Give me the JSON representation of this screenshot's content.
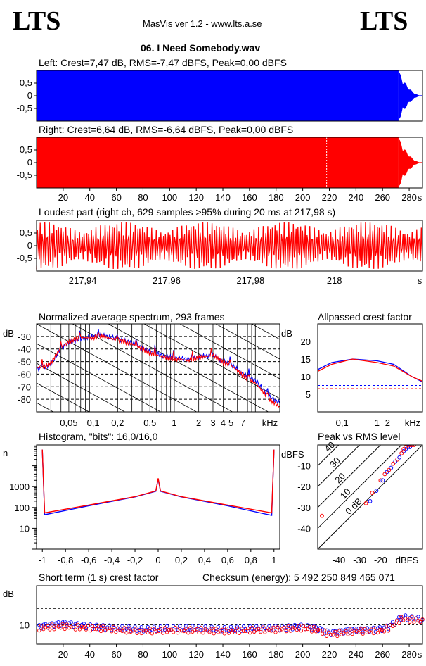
{
  "header": {
    "logo_left": "LTS",
    "logo_right": "LTS",
    "app": "MasVis ver 1.2 - www.lts.a.se",
    "file": "06. I Need Somebody.wav"
  },
  "colors": {
    "left": "#0000ff",
    "right": "#ff0000",
    "grid": "#000000"
  },
  "chart_data": [
    {
      "id": "left-waveform",
      "type": "area",
      "title": "Left: Crest=7,47 dB, RMS=-7,47 dBFS, Peak=0,00 dBFS",
      "yticks": [
        "0,5",
        "0",
        "-0,5"
      ],
      "ylim": [
        -1,
        1
      ],
      "color": "#0000ff",
      "xlim": [
        0,
        290
      ],
      "fadeout_start_s": 272
    },
    {
      "id": "right-waveform",
      "type": "area",
      "title": "Right: Crest=6,64 dB, RMS=-6,64 dBFS, Peak=0,00 dBFS",
      "yticks": [
        "0,5",
        "0",
        "-0,5"
      ],
      "ylim": [
        -1,
        1
      ],
      "color": "#ff0000",
      "xlim": [
        0,
        290
      ],
      "fadeout_start_s": 272,
      "marker_s": 217.98,
      "xticks": [
        "20",
        "40",
        "60",
        "80",
        "100",
        "120",
        "140",
        "160",
        "180",
        "200",
        "220",
        "240",
        "260",
        "280",
        "s"
      ]
    },
    {
      "id": "loudest-part",
      "type": "line",
      "title": "Loudest part (right ch, 629 samples >95% during 20 ms at 217,98 s)",
      "yticks": [
        "0,5",
        "0",
        "-0,5"
      ],
      "ylim": [
        -1,
        1
      ],
      "xlim": [
        217.929,
        218.021
      ],
      "xticks": [
        "217,94",
        "217,96",
        "217,98",
        "218",
        "s"
      ]
    },
    {
      "id": "spectrum",
      "type": "line",
      "title": "Normalized average spectrum, 293 frames",
      "ylabel": "dB",
      "yticks": [
        "-30",
        "-40",
        "-50",
        "-60",
        "-70",
        "-80"
      ],
      "ylim": [
        -90,
        -20
      ],
      "xticks": [
        "0,05",
        "0,1",
        "0,2",
        "0,5",
        "1",
        "2",
        "3",
        "4",
        "5",
        "7",
        "kHz"
      ],
      "xlim_khz": [
        0.02,
        20
      ],
      "series": [
        {
          "color": "#0000ff",
          "x": [
            0.02,
            0.025,
            0.03,
            0.04,
            0.05,
            0.07,
            0.1,
            0.13,
            0.2,
            0.3,
            0.5,
            0.7,
            1,
            1.5,
            2,
            3,
            4,
            5,
            7,
            10,
            15,
            20
          ],
          "y": [
            -56,
            -55,
            -52,
            -40,
            -35,
            -32,
            -30,
            -29,
            -32,
            -35,
            -42,
            -45,
            -47,
            -48,
            -46,
            -45,
            -50,
            -52,
            -60,
            -65,
            -78,
            -83
          ]
        },
        {
          "color": "#ff0000",
          "x": [
            0.02,
            0.025,
            0.03,
            0.04,
            0.05,
            0.07,
            0.1,
            0.13,
            0.2,
            0.3,
            0.5,
            0.7,
            1,
            1.5,
            2,
            3,
            4,
            5,
            7,
            10,
            15,
            20
          ],
          "y": [
            -55,
            -54,
            -51,
            -39,
            -34,
            -31,
            -31,
            -30,
            -33,
            -36,
            -43,
            -46,
            -48,
            -49,
            -47,
            -45,
            -51,
            -53,
            -61,
            -67,
            -80,
            -86
          ]
        }
      ]
    },
    {
      "id": "allpassed-crest",
      "type": "line",
      "title": "Allpassed crest factor",
      "ylabel": "dB",
      "yticks": [
        "20",
        "15",
        "10",
        "5"
      ],
      "ylim": [
        0,
        25
      ],
      "xticks": [
        "0,1",
        "1",
        "2",
        "kHz"
      ],
      "xlim_khz": [
        0.02,
        20
      ],
      "series": [
        {
          "color": "#0000ff",
          "x": [
            0.02,
            0.05,
            0.2,
            1,
            3,
            10,
            20
          ],
          "y": [
            12,
            14,
            15,
            14.5,
            13.5,
            10,
            8.5
          ]
        },
        {
          "color": "#ff0000",
          "x": [
            0.02,
            0.05,
            0.2,
            1,
            3,
            10,
            20
          ],
          "y": [
            11.5,
            13.5,
            15,
            14,
            13,
            10,
            8.7
          ]
        }
      ],
      "reference_lines": [
        {
          "color": "#0000ff",
          "y": 7.5
        },
        {
          "color": "#ff0000",
          "y": 6.6
        }
      ]
    },
    {
      "id": "histogram",
      "type": "line",
      "title": "Histogram, \"bits\": 16,0/16,0",
      "ylabel": "n",
      "yticks": [
        "1000",
        "100",
        "10"
      ],
      "ylim_log": [
        1,
        100000
      ],
      "xlim": [
        -1.05,
        1.05
      ],
      "xticks": [
        "-1",
        "-0,8",
        "-0,6",
        "-0,4",
        "-0,2",
        "0",
        "0,2",
        "0,4",
        "0,6",
        "0,8",
        "1"
      ],
      "series": [
        {
          "color": "#0000ff",
          "x": [
            -1,
            -0.98,
            -0.6,
            -0.2,
            -0.02,
            0,
            0.02,
            0.2,
            0.6,
            0.98,
            1
          ],
          "y": [
            60000,
            45,
            120,
            320,
            600,
            2300,
            600,
            320,
            120,
            42,
            60000
          ]
        },
        {
          "color": "#ff0000",
          "x": [
            -1,
            -0.98,
            -0.6,
            -0.2,
            -0.02,
            0,
            0.02,
            0.2,
            0.6,
            0.98,
            1
          ],
          "y": [
            60000,
            55,
            130,
            330,
            620,
            2500,
            620,
            330,
            130,
            55,
            60000
          ]
        }
      ]
    },
    {
      "id": "peak-vs-rms",
      "type": "scatter",
      "title": "Peak vs RMS level",
      "ylabel": "dBFS",
      "xlabel": "dBFS",
      "yticks": [
        "-10",
        "-20",
        "-30",
        "-40"
      ],
      "xticks": [
        "-40",
        "-30",
        "-20"
      ],
      "xlim": [
        -50,
        0
      ],
      "ylim": [
        -50,
        0
      ],
      "diagonal_labels": [
        "40",
        "30",
        "20",
        "10",
        "0 dB"
      ],
      "series": [
        {
          "color": "#0000ff",
          "x": [
            -25,
            -22,
            -19,
            -17,
            -15,
            -13,
            -11,
            -9,
            -8,
            -7,
            -6,
            -5
          ],
          "y": [
            -27,
            -22,
            -17,
            -13,
            -11,
            -8,
            -6,
            -3,
            -2,
            -1,
            -1,
            0
          ]
        },
        {
          "color": "#ff0000",
          "x": [
            -48,
            -27,
            -24,
            -20,
            -18,
            -16,
            -14,
            -12,
            -10,
            -9,
            -8,
            -7,
            -6,
            -5,
            -4
          ],
          "y": [
            -34,
            -28,
            -23,
            -17,
            -14,
            -12,
            -9,
            -7,
            -4,
            -2,
            -1,
            0,
            0,
            0,
            0
          ]
        }
      ]
    },
    {
      "id": "short-term-crest",
      "type": "scatter",
      "title": "Short term (1 s) crest factor",
      "checksum_label": "Checksum (energy):  5 492 250 849 465 071",
      "ylabel": "dB",
      "yticks": [
        "10"
      ],
      "ylim": [
        4,
        22
      ],
      "xlim": [
        0,
        290
      ],
      "dashed_y": [
        10,
        15
      ],
      "xticks": [
        "20",
        "40",
        "60",
        "80",
        "100",
        "120",
        "140",
        "160",
        "180",
        "200",
        "220",
        "240",
        "260",
        "280",
        "s"
      ],
      "series": [
        {
          "color": "#0000ff",
          "x": [
            2,
            20,
            40,
            60,
            80,
            100,
            120,
            140,
            160,
            180,
            200,
            210,
            220,
            230,
            240,
            250,
            260,
            265,
            270,
            275,
            280,
            285,
            290
          ],
          "y": [
            9.5,
            10.5,
            9.5,
            9,
            8.5,
            8.8,
            8.8,
            8.5,
            8.8,
            9,
            9.5,
            9,
            7.5,
            8,
            8.5,
            8.5,
            8.8,
            9.5,
            11,
            12.5,
            12,
            12,
            11.5
          ]
        },
        {
          "color": "#ff0000",
          "x": [
            2,
            20,
            40,
            60,
            80,
            100,
            120,
            140,
            160,
            180,
            200,
            210,
            220,
            230,
            240,
            250,
            260,
            265,
            270,
            275,
            280,
            285,
            290
          ],
          "y": [
            9,
            9.5,
            9,
            8.5,
            8,
            8.3,
            8.3,
            8,
            8.3,
            8.5,
            9,
            8.5,
            7,
            7.5,
            8,
            8,
            8.3,
            9,
            10.5,
            12,
            11.5,
            11.5,
            11
          ]
        }
      ]
    }
  ]
}
